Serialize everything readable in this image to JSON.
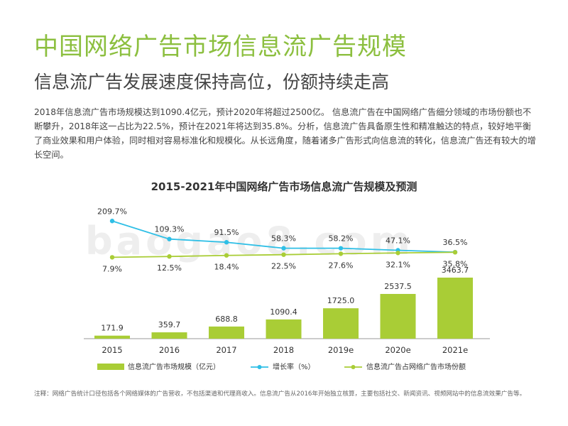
{
  "page": {
    "title": "中国网络广告市场信息流广告规模",
    "subtitle": "信息流广告发展速度保持高位，份额持续走高",
    "description": "2018年信息流广告市场规模达到1090.4亿元，预计2020年将超过2500亿。  信息流广告在中国网络广告细分领域的市场份额也不断攀升，2018年这一占比为22.5%，预计在2021年将达到35.8%。分析，信息流广告具备原生性和精准触达的特点，较好地平衡了商业效果和用户体验，同时相对容易标准化和规模化。从长远角度，随着诸多广告形式向信息流的转化，信息流广告还有较大的增长空间。",
    "watermark": "baogao8.com",
    "note": "注释：网络广告统计口径包括各个网络媒体的广告营收，不包括渠道和代理商收入。信息流广告从2016年开始独立核算，主要包括社交、新闻资讯、视频网站中的信息流效果广告等。"
  },
  "colors": {
    "title": "#8cbf3f",
    "bar": "#a9cd36",
    "growth_line": "#2fbfe6",
    "share_line": "#a9cd36"
  },
  "chart_data": {
    "type": "bar",
    "title": "2015-2021年中国网络广告市场信息流广告规模及预测",
    "categories": [
      "2015",
      "2016",
      "2017",
      "2018",
      "2019e",
      "2020e",
      "2021e"
    ],
    "series": [
      {
        "name": "信息流广告市场规模（亿元）",
        "type": "bar",
        "values": [
          171.9,
          359.7,
          688.8,
          1090.4,
          1725.0,
          2537.5,
          3463.7
        ],
        "labels": [
          "171.9",
          "359.7",
          "688.8",
          "1090.4",
          "1725.0",
          "2537.5",
          "3463.7"
        ]
      },
      {
        "name": "增长率（%）",
        "type": "line",
        "values": [
          209.7,
          109.3,
          91.5,
          58.3,
          58.2,
          47.1,
          36.5
        ],
        "labels": [
          "209.7%",
          "109.3%",
          "91.5%",
          "58.3%",
          "58.2%",
          "47.1%",
          "36.5%"
        ]
      },
      {
        "name": "信息流广告占网络广告市场份额",
        "type": "line",
        "values": [
          7.9,
          12.5,
          18.4,
          22.5,
          27.6,
          32.1,
          35.8
        ],
        "labels": [
          "7.9%",
          "12.5%",
          "18.4%",
          "22.5%",
          "27.6%",
          "32.1%",
          "35.8%"
        ]
      }
    ],
    "legend_position": "bottom",
    "grid": false
  }
}
